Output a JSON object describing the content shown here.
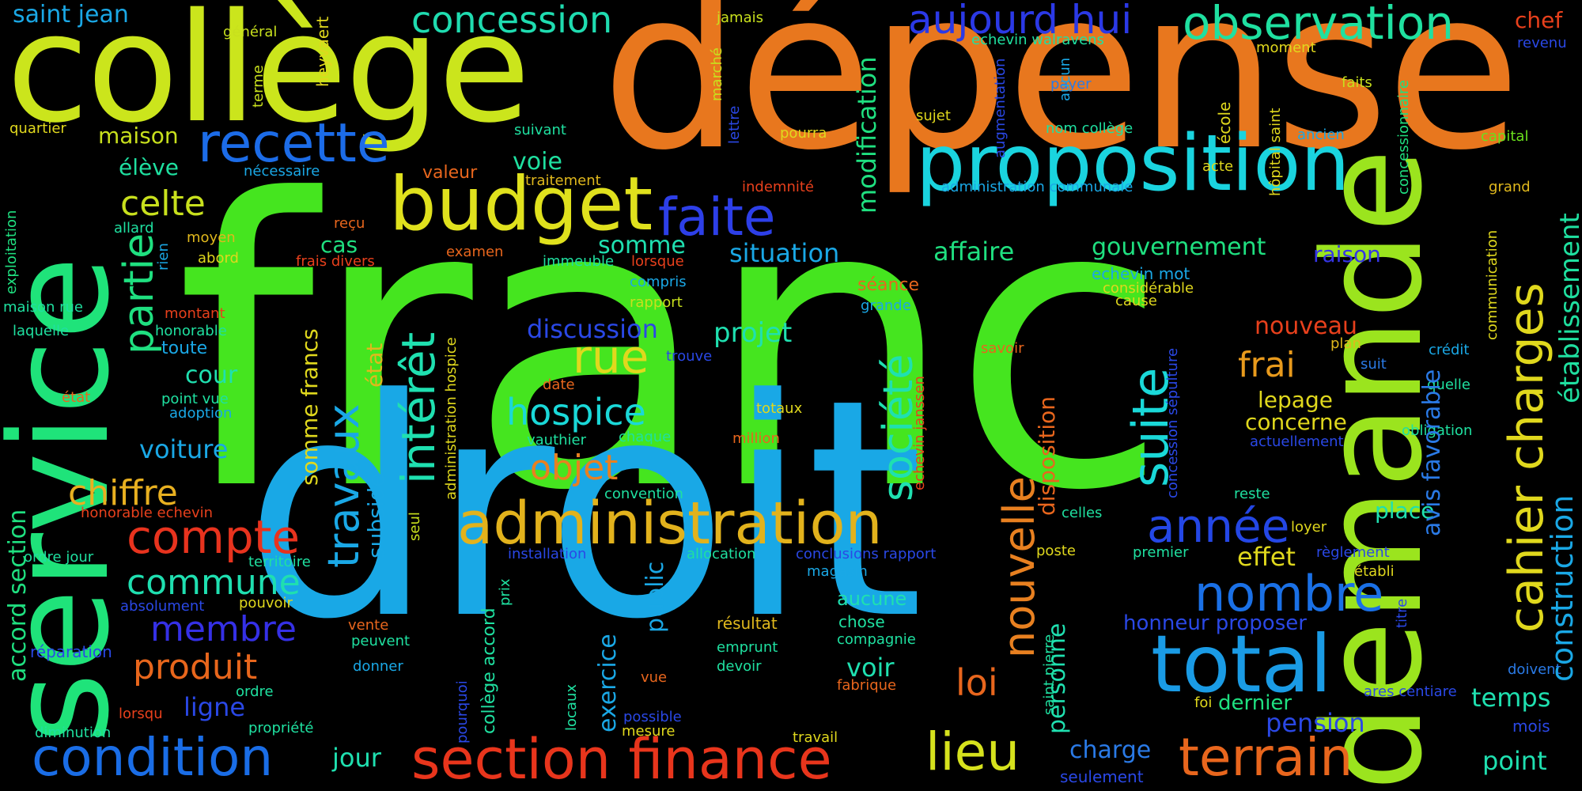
{
  "background": "#000000",
  "words": [
    {
      "text": "franc",
      "color": "#45e51f"
    },
    {
      "text": "droit",
      "color": "#19a8e6"
    },
    {
      "text": "dépense",
      "color": "#e8771e"
    },
    {
      "text": "collège",
      "color": "#cbe51c"
    },
    {
      "text": "service",
      "color": "#1fe37a"
    },
    {
      "text": "demande",
      "color": "#9be41e"
    },
    {
      "text": "proposition",
      "color": "#1ad4df"
    },
    {
      "text": "budget",
      "color": "#e0e11d"
    },
    {
      "text": "administration",
      "color": "#e2b21c"
    },
    {
      "text": "total",
      "color": "#1a9be5"
    },
    {
      "text": "section finance",
      "color": "#e8351c"
    },
    {
      "text": "terrain",
      "color": "#e8661d"
    },
    {
      "text": "condition",
      "color": "#1a6de6"
    },
    {
      "text": "lieu",
      "color": "#d6e21d"
    },
    {
      "text": "recette",
      "color": "#1c6ce8"
    },
    {
      "text": "observation",
      "color": "#1fe0a0"
    },
    {
      "text": "faite",
      "color": "#2d3fe8"
    },
    {
      "text": "aujourd hui",
      "color": "#2b39e6"
    },
    {
      "text": "concession",
      "color": "#1fdcb0"
    },
    {
      "text": "année",
      "color": "#2447e6"
    },
    {
      "text": "nombre",
      "color": "#1a70e6"
    },
    {
      "text": "compte",
      "color": "#e8331e"
    },
    {
      "text": "commune",
      "color": "#1fdfb0"
    },
    {
      "text": "produit",
      "color": "#e8661c"
    },
    {
      "text": "membre",
      "color": "#3530e6"
    },
    {
      "text": "chiffre",
      "color": "#e8b020"
    },
    {
      "text": "hospice",
      "color": "#1ad8d8"
    },
    {
      "text": "objet",
      "color": "#e88020"
    },
    {
      "text": "rue",
      "color": "#e0d81d"
    },
    {
      "text": "celte",
      "color": "#c8e01d"
    },
    {
      "text": "maison",
      "color": "#c8e01d"
    },
    {
      "text": "élève",
      "color": "#1fe0a0"
    },
    {
      "text": "voie",
      "color": "#1fe0a0"
    },
    {
      "text": "frai",
      "color": "#e89a1c"
    },
    {
      "text": "lepage",
      "color": "#e0d81d"
    },
    {
      "text": "concerne",
      "color": "#e0d81d"
    },
    {
      "text": "projet",
      "color": "#1fe0b0"
    },
    {
      "text": "discussion",
      "color": "#2a48e6"
    },
    {
      "text": "nouveau",
      "color": "#e8401c"
    },
    {
      "text": "effet",
      "color": "#e0d81d"
    },
    {
      "text": "loi",
      "color": "#e8661d"
    },
    {
      "text": "somme",
      "color": "#1fe0b0"
    },
    {
      "text": "situation",
      "color": "#1aa8e6"
    },
    {
      "text": "affaire",
      "color": "#1fe080"
    },
    {
      "text": "gouvernement",
      "color": "#1fe080"
    },
    {
      "text": "raison",
      "color": "#3535e6"
    },
    {
      "text": "cas",
      "color": "#1fe080"
    },
    {
      "text": "cour",
      "color": "#1fe0b0"
    },
    {
      "text": "voiture",
      "color": "#1aa8e6"
    },
    {
      "text": "saint jean",
      "color": "#1aa8e6"
    },
    {
      "text": "ligne",
      "color": "#2a48e6"
    },
    {
      "text": "jour",
      "color": "#1fe0b0"
    },
    {
      "text": "charge",
      "color": "#2a7ae6"
    },
    {
      "text": "pension",
      "color": "#2a48e6"
    },
    {
      "text": "temps",
      "color": "#1fe0b0"
    },
    {
      "text": "point",
      "color": "#1fe0b0"
    },
    {
      "text": "voir",
      "color": "#1fe0b0"
    },
    {
      "text": "aucune",
      "color": "#1fe0b0"
    },
    {
      "text": "place",
      "color": "#1fe0b0"
    },
    {
      "text": "honneur proposer",
      "color": "#2a48e6"
    },
    {
      "text": "dernier",
      "color": "#1fe080"
    },
    {
      "text": "chef",
      "color": "#e8401c"
    },
    {
      "text": "revenu",
      "color": "#2a48e6"
    },
    {
      "text": "général",
      "color": "#c8e01d"
    },
    {
      "text": "jamais",
      "color": "#c8e01d"
    },
    {
      "text": "echevin walravens",
      "color": "#1fe0a0"
    },
    {
      "text": "moment",
      "color": "#e0d81d"
    },
    {
      "text": "payer",
      "color": "#2a7ae6"
    },
    {
      "text": "faits",
      "color": "#c8e01d"
    },
    {
      "text": "capital",
      "color": "#6ae01d"
    },
    {
      "text": "quartier",
      "color": "#e0d81d"
    },
    {
      "text": "suivant",
      "color": "#1fe0a0"
    },
    {
      "text": "pourra",
      "color": "#e0d81d"
    },
    {
      "text": "sujet",
      "color": "#e0d81d"
    },
    {
      "text": "nom collège",
      "color": "#1fe0a0"
    },
    {
      "text": "ancien",
      "color": "#1aa8e6"
    },
    {
      "text": "nécessaire",
      "color": "#1aa8e6"
    },
    {
      "text": "valeur",
      "color": "#e8661d"
    },
    {
      "text": "traitement",
      "color": "#e0b81d"
    },
    {
      "text": "indemnité",
      "color": "#e8401c"
    },
    {
      "text": "acte",
      "color": "#e0d81d"
    },
    {
      "text": "administration communale",
      "color": "#1aa8e6"
    },
    {
      "text": "grand",
      "color": "#e0b81d"
    },
    {
      "text": "allard",
      "color": "#1fe0a0"
    },
    {
      "text": "moyen",
      "color": "#e0b81d"
    },
    {
      "text": "abord",
      "color": "#e0d81d"
    },
    {
      "text": "reçu",
      "color": "#e8661d"
    },
    {
      "text": "examen",
      "color": "#e8661d"
    },
    {
      "text": "frais divers",
      "color": "#e8401c"
    },
    {
      "text": "immeuble",
      "color": "#1fe0a0"
    },
    {
      "text": "lorsque",
      "color": "#e8401c"
    },
    {
      "text": "compris",
      "color": "#1aa8e6"
    },
    {
      "text": "rapport",
      "color": "#c8e01d"
    },
    {
      "text": "maison rue",
      "color": "#1fe0a0"
    },
    {
      "text": "montant",
      "color": "#e8401c"
    },
    {
      "text": "laquelle",
      "color": "#1fe0a0"
    },
    {
      "text": "honorable",
      "color": "#1fe0a0"
    },
    {
      "text": "toute",
      "color": "#1aa8e6"
    },
    {
      "text": "séance",
      "color": "#e8661d"
    },
    {
      "text": "grande",
      "color": "#1aa8e6"
    },
    {
      "text": "echevin mot",
      "color": "#1aa8e6"
    },
    {
      "text": "considérable",
      "color": "#e0d81d"
    },
    {
      "text": "cause",
      "color": "#e0d81d"
    },
    {
      "text": "état",
      "color": "#e8661d"
    },
    {
      "text": "point vue",
      "color": "#1fe0a0"
    },
    {
      "text": "adoption",
      "color": "#1aa8e6"
    },
    {
      "text": "trouve",
      "color": "#2a48e6"
    },
    {
      "text": "date",
      "color": "#e8661d"
    },
    {
      "text": "savoir",
      "color": "#e8661d"
    },
    {
      "text": "plan",
      "color": "#e0b81d"
    },
    {
      "text": "suit",
      "color": "#2a7ae6"
    },
    {
      "text": "crédit",
      "color": "#1aa8e6"
    },
    {
      "text": "quelle",
      "color": "#1fe0a0"
    },
    {
      "text": "totaux",
      "color": "#e0d81d"
    },
    {
      "text": "million",
      "color": "#e8661d"
    },
    {
      "text": "vauthier",
      "color": "#1fe0a0"
    },
    {
      "text": "chaque",
      "color": "#1fe0a0"
    },
    {
      "text": "obligation",
      "color": "#1fe0a0"
    },
    {
      "text": "actuellement",
      "color": "#2a48e6"
    },
    {
      "text": "convention",
      "color": "#1fe0a0"
    },
    {
      "text": "reste",
      "color": "#1fe0a0"
    },
    {
      "text": "honorable echevin",
      "color": "#e8401c"
    },
    {
      "text": "celles",
      "color": "#1fe0a0"
    },
    {
      "text": "loyer",
      "color": "#e0d81d"
    },
    {
      "text": "ordre jour",
      "color": "#1fe0a0"
    },
    {
      "text": "territoire",
      "color": "#1fe0a0"
    },
    {
      "text": "installation",
      "color": "#2a48e6"
    },
    {
      "text": "allocation",
      "color": "#1fe0a0"
    },
    {
      "text": "conclusions rapport",
      "color": "#2a48e6"
    },
    {
      "text": "poste",
      "color": "#e0d81d"
    },
    {
      "text": "premier",
      "color": "#1fe0a0"
    },
    {
      "text": "règlement",
      "color": "#2a48e6"
    },
    {
      "text": "établi",
      "color": "#e0d81d"
    },
    {
      "text": "magasin",
      "color": "#1aa8e6"
    },
    {
      "text": "absolument",
      "color": "#2a48e6"
    },
    {
      "text": "pouvoir",
      "color": "#e0d81d"
    },
    {
      "text": "vente",
      "color": "#e8661d"
    },
    {
      "text": "peuvent",
      "color": "#1fe0a0"
    },
    {
      "text": "résultat",
      "color": "#e0b81d"
    },
    {
      "text": "chose",
      "color": "#1fe0a0"
    },
    {
      "text": "compagnie",
      "color": "#1fe0a0"
    },
    {
      "text": "réparation",
      "color": "#2a48e6"
    },
    {
      "text": "donner",
      "color": "#1aa8e6"
    },
    {
      "text": "emprunt",
      "color": "#1fe0a0"
    },
    {
      "text": "devoir",
      "color": "#1fe0a0"
    },
    {
      "text": "vue",
      "color": "#e8661d"
    },
    {
      "text": "fabrique",
      "color": "#e8661d"
    },
    {
      "text": "ordre",
      "color": "#1fe0a0"
    },
    {
      "text": "lorsqu",
      "color": "#e8401c"
    },
    {
      "text": "diminution",
      "color": "#1fe0a0"
    },
    {
      "text": "propriété",
      "color": "#1fe0a0"
    },
    {
      "text": "possible",
      "color": "#2a48e6"
    },
    {
      "text": "mesure",
      "color": "#e0d81d"
    },
    {
      "text": "travail",
      "color": "#e0d81d"
    },
    {
      "text": "ares centiare",
      "color": "#2a48e6"
    },
    {
      "text": "foi",
      "color": "#e0d81d"
    },
    {
      "text": "mois",
      "color": "#2a48e6"
    },
    {
      "text": "doivent",
      "color": "#2a7ae6"
    },
    {
      "text": "seulement",
      "color": "#2a48e6"
    },
    {
      "text": "intérêt",
      "color": "#1fe0b0"
    },
    {
      "text": "travaux",
      "color": "#1aa8e6"
    },
    {
      "text": "partie",
      "color": "#1fe080"
    },
    {
      "text": "société",
      "color": "#1fe0b0"
    },
    {
      "text": "suite",
      "color": "#1ad8d8"
    },
    {
      "text": "nouvelle",
      "color": "#e88020"
    },
    {
      "text": "cahier charges",
      "color": "#e0d81d"
    },
    {
      "text": "construction",
      "color": "#1aa8e6"
    },
    {
      "text": "établissement",
      "color": "#1fe0a0"
    },
    {
      "text": "modification",
      "color": "#1fe080"
    },
    {
      "text": "avis favorable",
      "color": "#2a7ae6"
    },
    {
      "text": "somme francs",
      "color": "#e0d81d"
    },
    {
      "text": "état",
      "color": "#e0b81d"
    },
    {
      "text": "subside",
      "color": "#1aa8e6"
    },
    {
      "text": "disposition",
      "color": "#e8661d"
    },
    {
      "text": "personne",
      "color": "#1fe0b0"
    },
    {
      "text": "exercice",
      "color": "#1aa8e6"
    },
    {
      "text": "public",
      "color": "#1aa8e6"
    },
    {
      "text": "accord section",
      "color": "#1fe080"
    },
    {
      "text": "collège accord",
      "color": "#1fe0a0"
    },
    {
      "text": "exploitation",
      "color": "#1fe080"
    },
    {
      "text": "rien",
      "color": "#1aa8e6"
    },
    {
      "text": "terme",
      "color": "#c8e01d"
    },
    {
      "text": "heyvaert",
      "color": "#e0d81d"
    },
    {
      "text": "marché",
      "color": "#c8e01d"
    },
    {
      "text": "lettre",
      "color": "#2a48e6"
    },
    {
      "text": "augmentation",
      "color": "#2a48e6"
    },
    {
      "text": "aucun",
      "color": "#1aa8e6"
    },
    {
      "text": "école",
      "color": "#e0d81d"
    },
    {
      "text": "hôpital saint",
      "color": "#e0d81d"
    },
    {
      "text": "concessionnaire",
      "color": "#1fe080"
    },
    {
      "text": "communication",
      "color": "#e0d81d"
    },
    {
      "text": "echevin janssen",
      "color": "#e8401c"
    },
    {
      "text": "concession sépulture",
      "color": "#2a48e6"
    },
    {
      "text": "administration hospice",
      "color": "#e0d81d"
    },
    {
      "text": "seul",
      "color": "#c8e01d"
    },
    {
      "text": "prix",
      "color": "#1fe0a0"
    },
    {
      "text": "locaux",
      "color": "#1fe0a0"
    },
    {
      "text": "pourquoi",
      "color": "#2a48e6"
    },
    {
      "text": "saint pierre",
      "color": "#1fe0a0"
    },
    {
      "text": "titre",
      "color": "#2a48e6"
    }
  ]
}
